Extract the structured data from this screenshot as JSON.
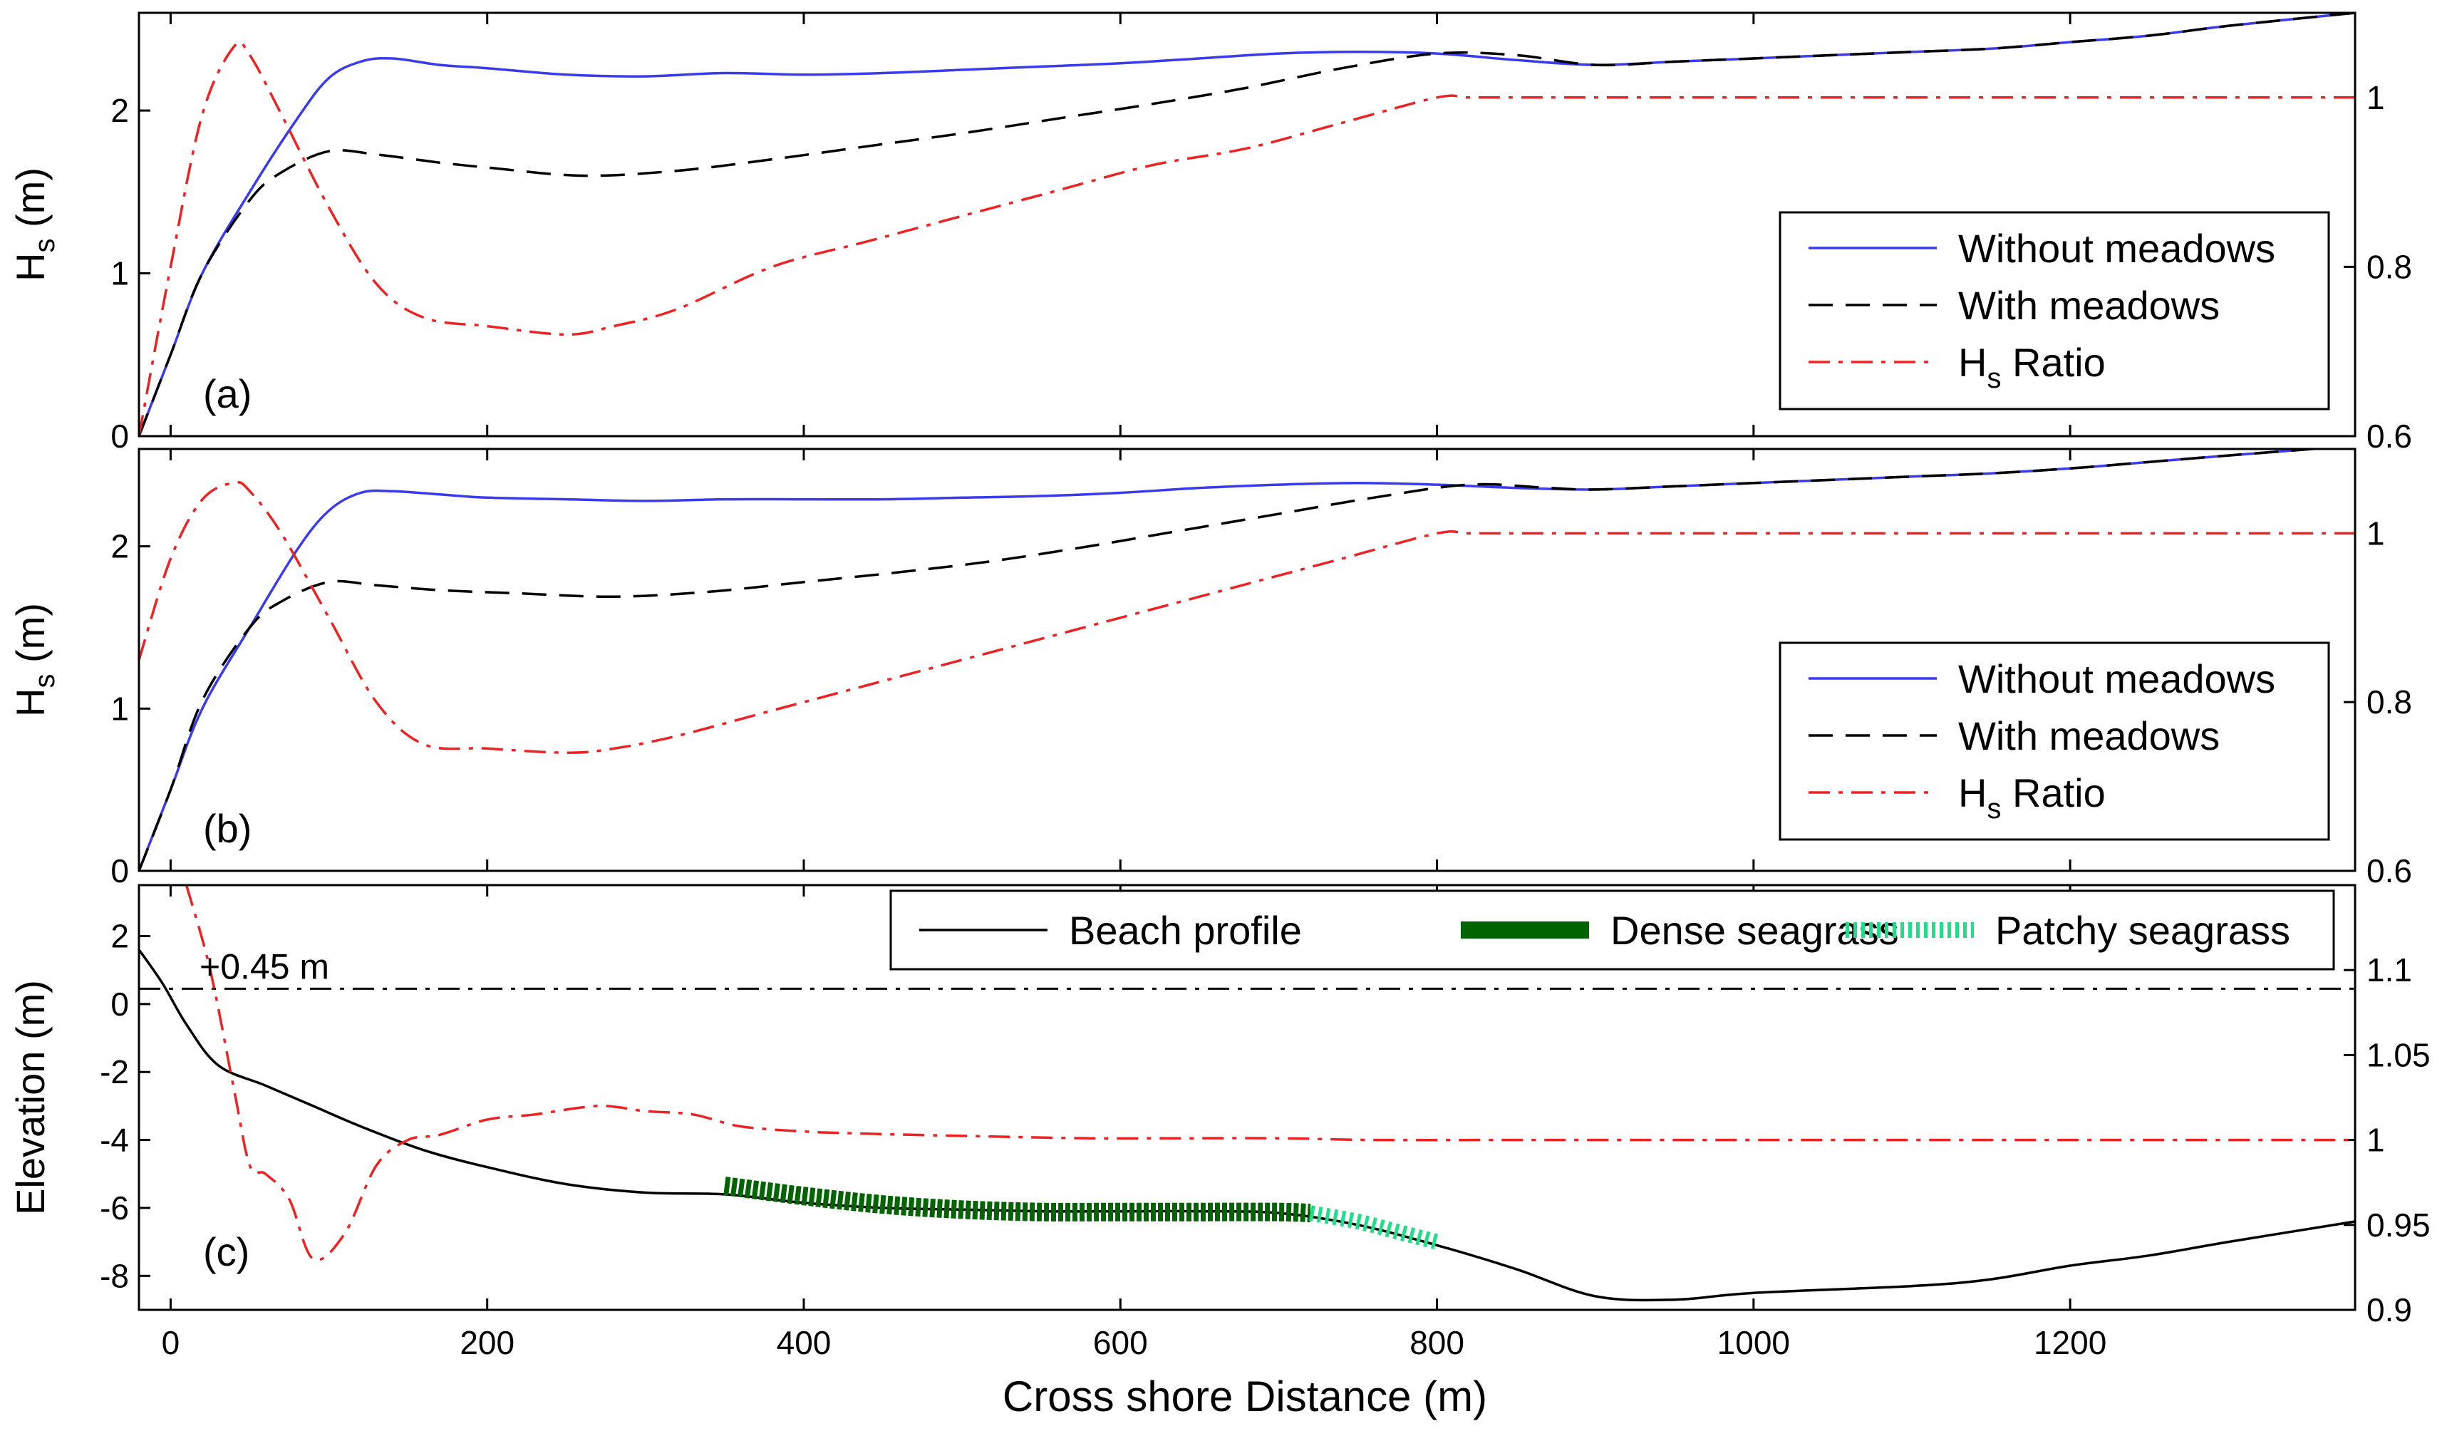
{
  "figure": {
    "xlabel": "Cross shore Distance (m)",
    "x_ticks": [
      0,
      200,
      400,
      600,
      800,
      1000,
      1200
    ],
    "xlim": [
      -20,
      1380
    ]
  },
  "chart_data": [
    {
      "type": "line",
      "panel": "(a)",
      "ylabel_main": "H",
      "ylabel_sub": "s",
      "ylabel_unit": " (m)",
      "ylim": [
        0,
        2.6
      ],
      "y_ticks": [
        0,
        1,
        2
      ],
      "y2lim": [
        0.6,
        1.1
      ],
      "y2_ticks": [
        "0.6",
        "0.8",
        "1"
      ],
      "y2_tick_values": [
        0.6,
        0.8,
        1.0
      ],
      "legend": [
        {
          "label": "Without meadows",
          "color": "#3a3aee",
          "dash": "solid"
        },
        {
          "label": "With meadows",
          "color": "#000000",
          "dash": "dashed"
        },
        {
          "label_main": "H",
          "label_sub": "s",
          "label_rest": " Ratio",
          "color": "#ee2222",
          "dash": "dashdot"
        }
      ],
      "series": [
        {
          "name": "Without meadows",
          "axis": "left",
          "color": "#3a3aee",
          "x": [
            -20,
            0,
            20,
            50,
            80,
            100,
            120,
            140,
            170,
            200,
            250,
            300,
            350,
            400,
            450,
            500,
            550,
            600,
            650,
            700,
            750,
            800,
            850,
            900,
            950,
            1000,
            1050,
            1100,
            1150,
            1200,
            1250,
            1300,
            1380
          ],
          "y": [
            0,
            0.5,
            1.0,
            1.5,
            1.95,
            2.2,
            2.3,
            2.32,
            2.28,
            2.26,
            2.22,
            2.21,
            2.23,
            2.22,
            2.23,
            2.25,
            2.27,
            2.29,
            2.32,
            2.35,
            2.36,
            2.35,
            2.31,
            2.28,
            2.3,
            2.32,
            2.34,
            2.36,
            2.38,
            2.42,
            2.46,
            2.52,
            2.6
          ]
        },
        {
          "name": "With meadows",
          "axis": "left",
          "color": "#000000",
          "x": [
            -20,
            0,
            20,
            50,
            70,
            100,
            130,
            170,
            200,
            260,
            320,
            380,
            440,
            500,
            560,
            620,
            680,
            740,
            800,
            850,
            900,
            950,
            1000,
            1050,
            1100,
            1150,
            1200,
            1250,
            1300,
            1380
          ],
          "y": [
            0,
            0.5,
            1.0,
            1.45,
            1.62,
            1.75,
            1.73,
            1.68,
            1.65,
            1.6,
            1.63,
            1.7,
            1.78,
            1.86,
            1.95,
            2.04,
            2.14,
            2.26,
            2.35,
            2.34,
            2.28,
            2.3,
            2.32,
            2.34,
            2.36,
            2.38,
            2.42,
            2.46,
            2.52,
            2.6
          ]
        },
        {
          "name": "Hs Ratio",
          "axis": "right",
          "color": "#ee2222",
          "x": [
            -20,
            0,
            20,
            40,
            50,
            70,
            100,
            130,
            160,
            200,
            250,
            280,
            320,
            380,
            440,
            500,
            560,
            620,
            680,
            740,
            800,
            820,
            850,
            900,
            1000,
            1100,
            1200,
            1300,
            1380
          ],
          "y": [
            0.6,
            0.8,
            0.98,
            1.06,
            1.05,
            0.98,
            0.87,
            0.78,
            0.74,
            0.73,
            0.72,
            0.73,
            0.75,
            0.8,
            0.83,
            0.86,
            0.89,
            0.92,
            0.94,
            0.97,
            1.0,
            1.0,
            1.0,
            1.0,
            1.0,
            1.0,
            1.0,
            1.0,
            1.0
          ]
        }
      ]
    },
    {
      "type": "line",
      "panel": "(b)",
      "ylabel_main": "H",
      "ylabel_sub": "s",
      "ylabel_unit": " (m)",
      "ylim": [
        0,
        2.6
      ],
      "y_ticks": [
        0,
        1,
        2
      ],
      "y2lim": [
        0.6,
        1.1
      ],
      "y2_ticks": [
        "0.6",
        "0.8",
        "1"
      ],
      "y2_tick_values": [
        0.6,
        0.8,
        1.0
      ],
      "legend": [
        {
          "label": "Without meadows",
          "color": "#3a3aee",
          "dash": "solid"
        },
        {
          "label": "With meadows",
          "color": "#000000",
          "dash": "dashed"
        },
        {
          "label_main": "H",
          "label_sub": "s",
          "label_rest": " Ratio",
          "color": "#ee2222",
          "dash": "dashdot"
        }
      ],
      "series": [
        {
          "name": "Without meadows",
          "axis": "left",
          "color": "#3a3aee",
          "x": [
            -20,
            0,
            20,
            50,
            80,
            100,
            120,
            140,
            170,
            200,
            250,
            300,
            350,
            400,
            450,
            500,
            550,
            600,
            650,
            700,
            750,
            800,
            850,
            900,
            950,
            1000,
            1050,
            1100,
            1150,
            1200,
            1250,
            1300,
            1380
          ],
          "y": [
            0,
            0.5,
            1.0,
            1.5,
            1.98,
            2.22,
            2.33,
            2.34,
            2.32,
            2.3,
            2.29,
            2.28,
            2.29,
            2.29,
            2.29,
            2.3,
            2.31,
            2.33,
            2.36,
            2.38,
            2.39,
            2.38,
            2.36,
            2.35,
            2.37,
            2.39,
            2.41,
            2.43,
            2.45,
            2.48,
            2.52,
            2.56,
            2.62
          ]
        },
        {
          "name": "With meadows",
          "axis": "left",
          "color": "#000000",
          "x": [
            -20,
            0,
            20,
            50,
            70,
            100,
            130,
            170,
            220,
            280,
            340,
            400,
            460,
            520,
            580,
            640,
            700,
            760,
            820,
            870,
            900,
            950,
            1000,
            1050,
            1100,
            1150,
            1200,
            1250,
            1300,
            1380
          ],
          "y": [
            0,
            0.5,
            1.05,
            1.5,
            1.66,
            1.78,
            1.76,
            1.73,
            1.71,
            1.69,
            1.72,
            1.78,
            1.84,
            1.91,
            2.0,
            2.1,
            2.2,
            2.3,
            2.38,
            2.36,
            2.35,
            2.37,
            2.39,
            2.41,
            2.43,
            2.45,
            2.48,
            2.52,
            2.56,
            2.62
          ]
        },
        {
          "name": "Hs Ratio",
          "axis": "right",
          "color": "#ee2222",
          "x": [
            -20,
            0,
            20,
            40,
            50,
            70,
            100,
            130,
            160,
            200,
            250,
            280,
            320,
            380,
            440,
            500,
            560,
            620,
            680,
            740,
            800,
            820,
            850,
            900,
            1000,
            1100,
            1200,
            1300,
            1380
          ],
          "y": [
            0.85,
            0.97,
            1.04,
            1.06,
            1.05,
            1.0,
            0.9,
            0.8,
            0.75,
            0.745,
            0.74,
            0.745,
            0.76,
            0.79,
            0.82,
            0.85,
            0.88,
            0.91,
            0.94,
            0.97,
            1.0,
            1.0,
            1.0,
            1.0,
            1.0,
            1.0,
            1.0,
            1.0,
            1.0
          ]
        }
      ]
    },
    {
      "type": "line",
      "panel": "(c)",
      "ylabel": "Elevation (m)",
      "ylim": [
        -9,
        3.5
      ],
      "y_ticks": [
        -8,
        -6,
        -4,
        -2,
        0,
        2
      ],
      "y2lim": [
        0.9,
        1.15
      ],
      "y2_ticks": [
        "0.9",
        "0.95",
        "1",
        "1.05",
        "1.1"
      ],
      "y2_tick_values": [
        0.9,
        0.95,
        1.0,
        1.05,
        1.1
      ],
      "hline": {
        "y": 0.45,
        "label": "+0.45 m"
      },
      "legend": [
        {
          "label": "Beach profile",
          "color": "#000000",
          "style": "line"
        },
        {
          "label": "Dense seagrass",
          "color": "#006400",
          "style": "thick"
        },
        {
          "label": "Patchy seagrass",
          "color": "#22dd88",
          "style": "patchy"
        }
      ],
      "series": [
        {
          "name": "Beach profile",
          "axis": "left",
          "color": "#000000",
          "x": [
            -20,
            -5,
            10,
            30,
            60,
            90,
            120,
            160,
            200,
            250,
            300,
            350,
            400,
            450,
            500,
            550,
            600,
            650,
            700,
            750,
            800,
            850,
            900,
            950,
            1000,
            1100,
            1150,
            1200,
            1250,
            1300,
            1380
          ],
          "y": [
            1.6,
            0.6,
            -0.6,
            -1.8,
            -2.4,
            -3.0,
            -3.6,
            -4.3,
            -4.8,
            -5.3,
            -5.55,
            -5.6,
            -5.85,
            -6.0,
            -6.05,
            -6.1,
            -6.1,
            -6.1,
            -6.15,
            -6.5,
            -7.1,
            -7.8,
            -8.6,
            -8.7,
            -8.5,
            -8.3,
            -8.1,
            -7.7,
            -7.4,
            -7.0,
            -6.4
          ]
        },
        {
          "name": "Dense seagrass",
          "axis": "left",
          "color": "#006400",
          "x": [
            350,
            400,
            450,
            500,
            550,
            600,
            650,
            700,
            720
          ],
          "y": [
            -5.35,
            -5.65,
            -5.9,
            -6.05,
            -6.12,
            -6.12,
            -6.12,
            -6.12,
            -6.15
          ]
        },
        {
          "name": "Patchy seagrass",
          "axis": "left",
          "color": "#22dd88",
          "x": [
            720,
            750,
            775,
            800
          ],
          "y": [
            -6.15,
            -6.4,
            -6.7,
            -7.0
          ]
        },
        {
          "name": "Hs Ratio",
          "axis": "right",
          "color": "#ee2222",
          "x": [
            10,
            25,
            40,
            50,
            60,
            75,
            90,
            110,
            130,
            150,
            170,
            200,
            230,
            270,
            300,
            330,
            360,
            400,
            430,
            470,
            520,
            580,
            640,
            700,
            760,
            850,
            950,
            1050,
            1150,
            1250,
            1380
          ],
          "y": [
            1.15,
            1.1,
            1.03,
            0.985,
            0.98,
            0.965,
            0.93,
            0.945,
            0.985,
            1.0,
            1.003,
            1.012,
            1.015,
            1.02,
            1.017,
            1.015,
            1.008,
            1.005,
            1.004,
            1.003,
            1.002,
            1.001,
            1.001,
            1.001,
            1.0,
            1.0,
            1.0,
            1.0,
            1.0,
            1.0,
            1.0
          ]
        }
      ]
    }
  ]
}
